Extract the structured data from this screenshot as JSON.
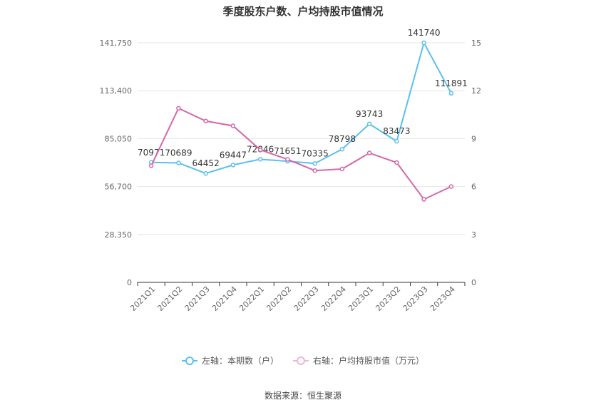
{
  "chart_data": {
    "type": "line",
    "title": "季度股东户数、户均持股市值情况",
    "categories": [
      "2021Q1",
      "2021Q2",
      "2021Q3",
      "2021Q4",
      "2022Q1",
      "2022Q2",
      "2022Q3",
      "2022Q4",
      "2023Q1",
      "2023Q2",
      "2023Q3",
      "2023Q4"
    ],
    "y_left": {
      "ticks": [
        "0",
        "28,350",
        "56,700",
        "85,050",
        "113,400",
        "141,750"
      ],
      "min": 0,
      "max": 141750
    },
    "y_right": {
      "ticks": [
        "0",
        "3",
        "6",
        "9",
        "12",
        "15"
      ],
      "min": 0,
      "max": 15
    },
    "grid": true,
    "legend_position": "bottom",
    "series": [
      {
        "name": "左轴：本期数（户）",
        "axis": "left",
        "color": "#5bc0eb",
        "values": [
          70971,
          70689,
          64452,
          69447,
          72846,
          71651,
          70335,
          78798,
          93743,
          83473,
          141740,
          111891
        ],
        "labels": [
          "70971",
          "70689",
          "64452",
          "69447",
          "72846",
          "71651",
          "70335",
          "78798",
          "93743",
          "83473",
          "141740",
          "111891"
        ]
      },
      {
        "name": "右轴：户均持股市值（万元）",
        "axis": "right",
        "color": "#d468a9",
        "values": [
          7.3,
          10.9,
          10.1,
          9.8,
          8.3,
          7.7,
          7.0,
          7.1,
          8.1,
          7.5,
          5.2,
          6.0
        ]
      }
    ]
  },
  "source": "数据来源：恒生聚源"
}
